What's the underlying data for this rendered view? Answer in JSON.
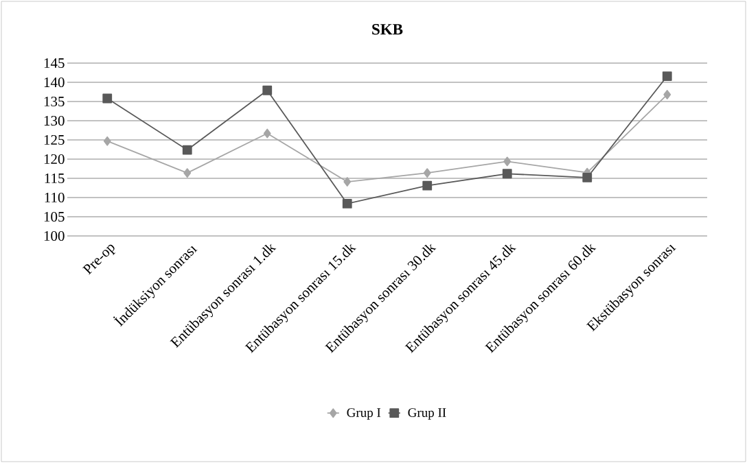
{
  "chart_data": {
    "type": "line",
    "title": "SKB",
    "categories": [
      "Pre-op",
      "İndüksiyon sonrası",
      "Entübasyon sonrası 1.dk",
      "Entübasyon sonrası 15.dk",
      "Entübasyon sonrası 30.dk",
      "Entübasyon sonrası 45.dk",
      "Entübasyon sonrası 60.dk",
      "Ekstübasyon sonrası"
    ],
    "series": [
      {
        "name": "Grup I",
        "color": "#a6a6a6",
        "marker": "diamond",
        "values": [
          124.7,
          116.4,
          126.7,
          114.1,
          116.4,
          119.4,
          116.5,
          136.8
        ]
      },
      {
        "name": "Grup II",
        "color": "#595959",
        "marker": "square",
        "values": [
          135.8,
          122.4,
          137.9,
          108.4,
          113.1,
          116.2,
          115.2,
          141.6
        ]
      }
    ],
    "ylim": [
      100,
      145
    ],
    "yticks": [
      100,
      105,
      110,
      115,
      120,
      125,
      130,
      135,
      140,
      145
    ],
    "grid": "y",
    "legend": "bottom"
  }
}
